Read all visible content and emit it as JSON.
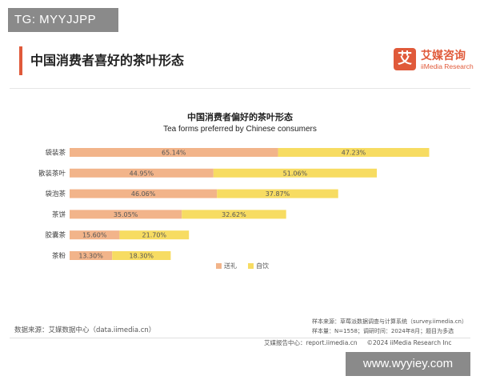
{
  "watermark_top": "TG: MYYJJPP",
  "page_title": "中国消费者喜好的茶叶形态",
  "logo": {
    "mark": "艾",
    "name_cn": "艾媒咨询",
    "name_en": "iiMedia Research"
  },
  "colors": {
    "accent": "#e05a3a",
    "gift": "#f2b48a",
    "self": "#f7dc62"
  },
  "chart_data": {
    "type": "bar",
    "orientation": "horizontal",
    "stacked": true,
    "title": "中国消费者偏好的茶叶形态",
    "subtitle": "Tea forms preferred by Chinese consumers",
    "categories": [
      "袋装茶",
      "散装茶叶",
      "袋泡茶",
      "茶饼",
      "胶囊茶",
      "茶粉"
    ],
    "series": [
      {
        "name": "送礼",
        "values": [
          65.14,
          44.95,
          46.06,
          35.05,
          15.6,
          13.3
        ],
        "labels": [
          "65.14%",
          "44.95%",
          "46.06%",
          "35.05%",
          "15.60%",
          "13.30%"
        ],
        "color": "#f2b48a"
      },
      {
        "name": "自饮",
        "values": [
          47.23,
          51.06,
          37.87,
          32.62,
          21.7,
          18.3
        ],
        "labels": [
          "47.23%",
          "51.06%",
          "37.87%",
          "32.62%",
          "21.70%",
          "18.30%"
        ],
        "color": "#f7dc62"
      }
    ],
    "legend_position": "bottom-right",
    "grid": false
  },
  "footer": {
    "data_source": "数据来源：艾媒数据中心（data.iimedia.cn）",
    "sample_source": "样本来源：草莓派数据调查与计算系统（survey.iimedia.cn）",
    "sample_info": "样本量：N=1558；调研时间：2024年8月；题目为多选",
    "report_center": "艾媒报告中心：report.iimedia.cn",
    "copyright": "©2024  iiMedia Research  Inc"
  },
  "watermark_bottom": "www.wyyiey.com"
}
